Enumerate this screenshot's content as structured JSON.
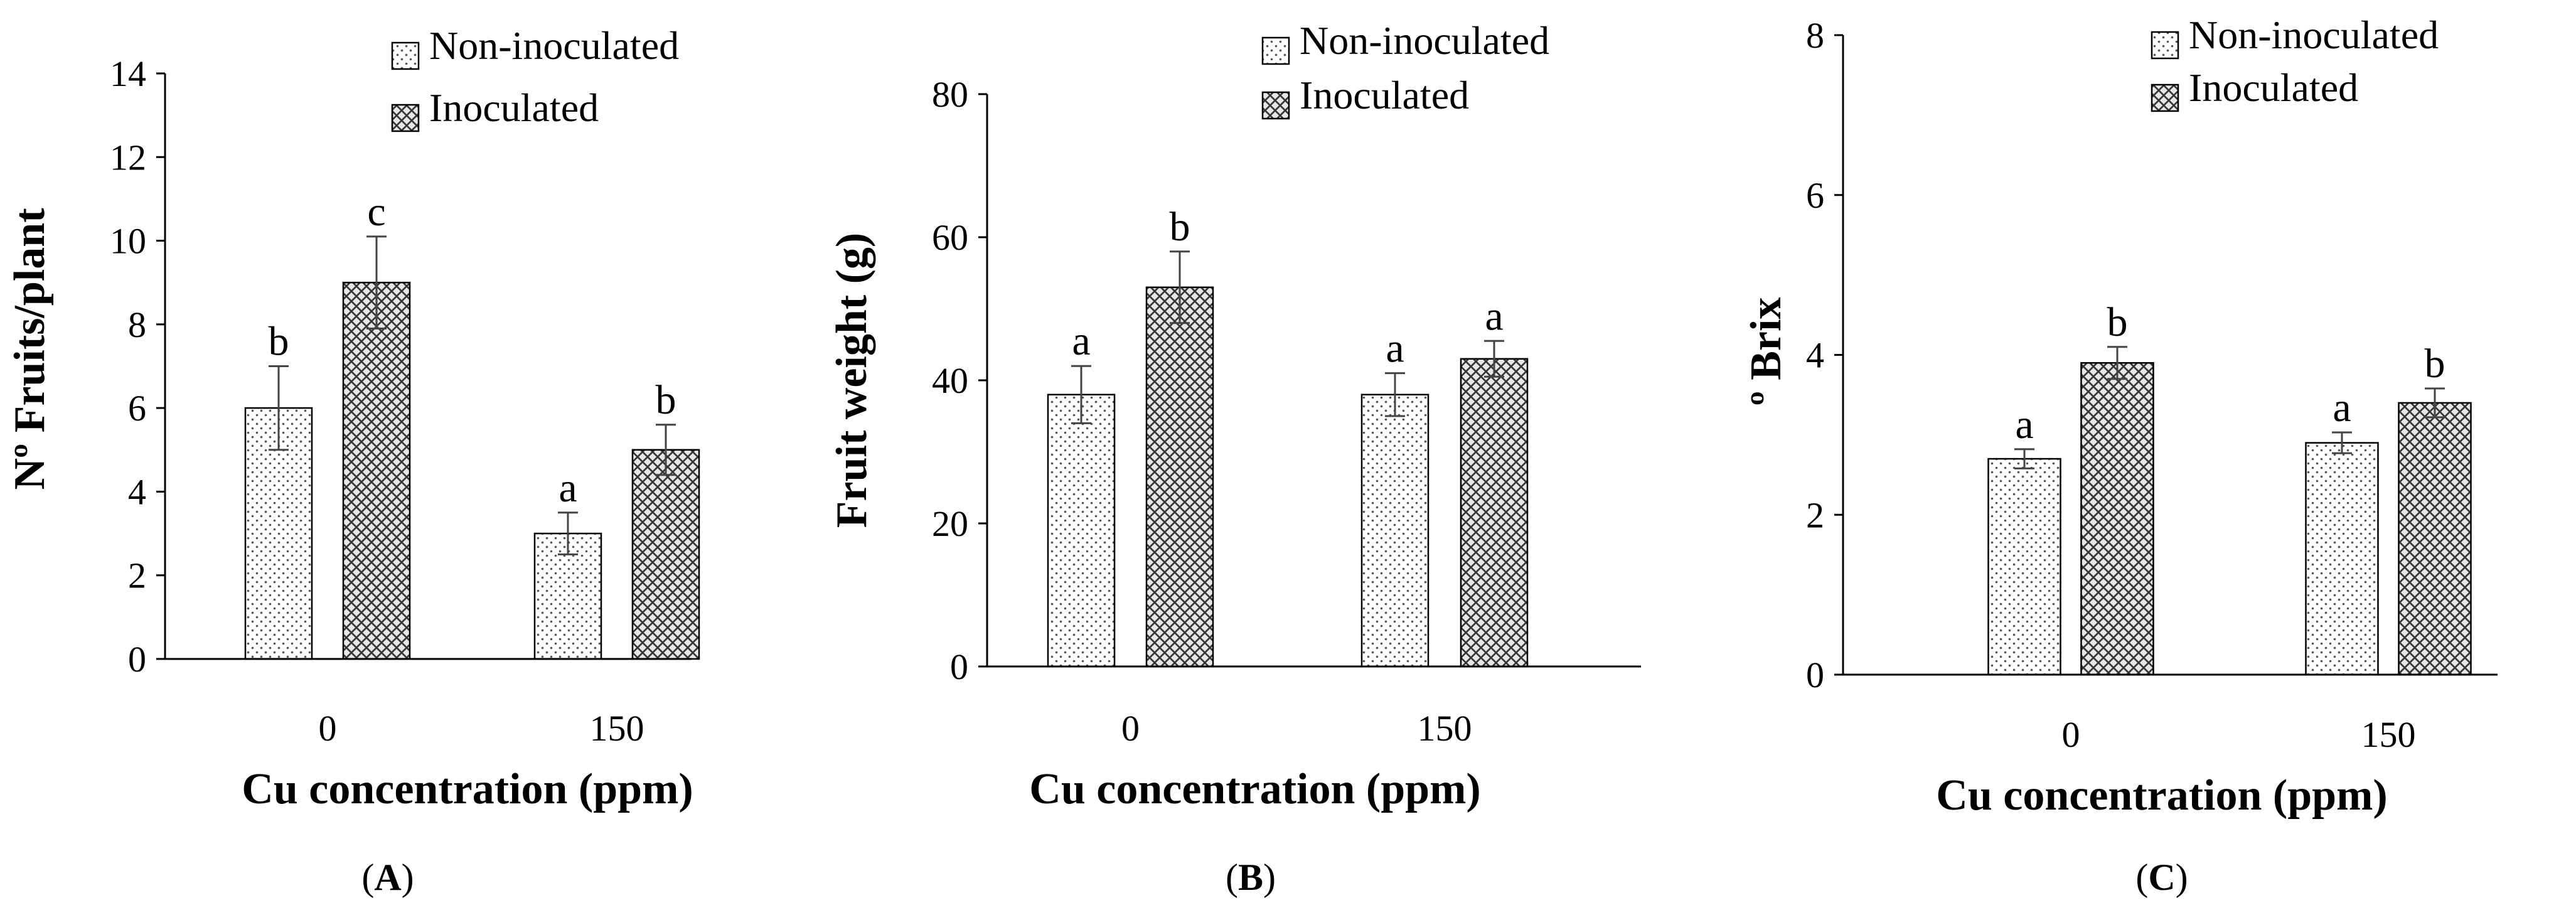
{
  "figure": {
    "panels": [
      {
        "letter": "A",
        "open": "(",
        "close": ")"
      },
      {
        "letter": "B",
        "open": "(",
        "close": ")"
      },
      {
        "letter": "C",
        "open": "(",
        "close": ")"
      }
    ]
  },
  "chart_data": [
    {
      "type": "bar",
      "panel": "(A)",
      "title": "",
      "xlabel": "Cu concentration (ppm)",
      "ylabel": "Nº Fruits/plant",
      "ylim": [
        0,
        14
      ],
      "yticks": [
        0,
        2,
        4,
        6,
        8,
        10,
        12,
        14
      ],
      "categories": [
        "0",
        "150"
      ],
      "legend": [
        "Non-inoculated",
        "Inoculated"
      ],
      "series": [
        {
          "name": "Non-inoculated",
          "pattern": "dots",
          "values": [
            6,
            3
          ],
          "errors": [
            1.0,
            0.5
          ],
          "letters": [
            "b",
            "a"
          ]
        },
        {
          "name": "Inoculated",
          "pattern": "crosshatch",
          "values": [
            9,
            5
          ],
          "errors": [
            1.1,
            0.6
          ],
          "letters": [
            "c",
            "b"
          ]
        }
      ]
    },
    {
      "type": "bar",
      "panel": "(B)",
      "title": "",
      "xlabel": "Cu concentration (ppm)",
      "ylabel": "Fruit weight (g)",
      "ylim": [
        0,
        80
      ],
      "yticks": [
        0,
        20,
        40,
        60,
        80
      ],
      "categories": [
        "0",
        "150"
      ],
      "legend": [
        "Non-inoculated",
        "Inoculated"
      ],
      "series": [
        {
          "name": "Non-inoculated",
          "pattern": "dots",
          "values": [
            38,
            38
          ],
          "errors": [
            4,
            3
          ],
          "letters": [
            "a",
            "a"
          ]
        },
        {
          "name": "Inoculated",
          "pattern": "crosshatch",
          "values": [
            53,
            43
          ],
          "errors": [
            5,
            2.5
          ],
          "letters": [
            "b",
            "a"
          ]
        }
      ]
    },
    {
      "type": "bar",
      "panel": "(C)",
      "title": "",
      "xlabel": "Cu concentration (ppm)",
      "ylabel": "º Brix",
      "ylim": [
        0,
        8
      ],
      "yticks": [
        0,
        2,
        4,
        6,
        8
      ],
      "categories": [
        "0",
        "150"
      ],
      "legend": [
        "Non-inoculated",
        "Inoculated"
      ],
      "series": [
        {
          "name": "Non-inoculated",
          "pattern": "dots",
          "values": [
            2.7,
            2.9
          ],
          "errors": [
            0.12,
            0.13
          ],
          "letters": [
            "a",
            "a"
          ]
        },
        {
          "name": "Inoculated",
          "pattern": "crosshatch",
          "values": [
            3.9,
            3.4
          ],
          "errors": [
            0.2,
            0.18
          ],
          "letters": [
            "b",
            "b"
          ]
        }
      ]
    }
  ]
}
